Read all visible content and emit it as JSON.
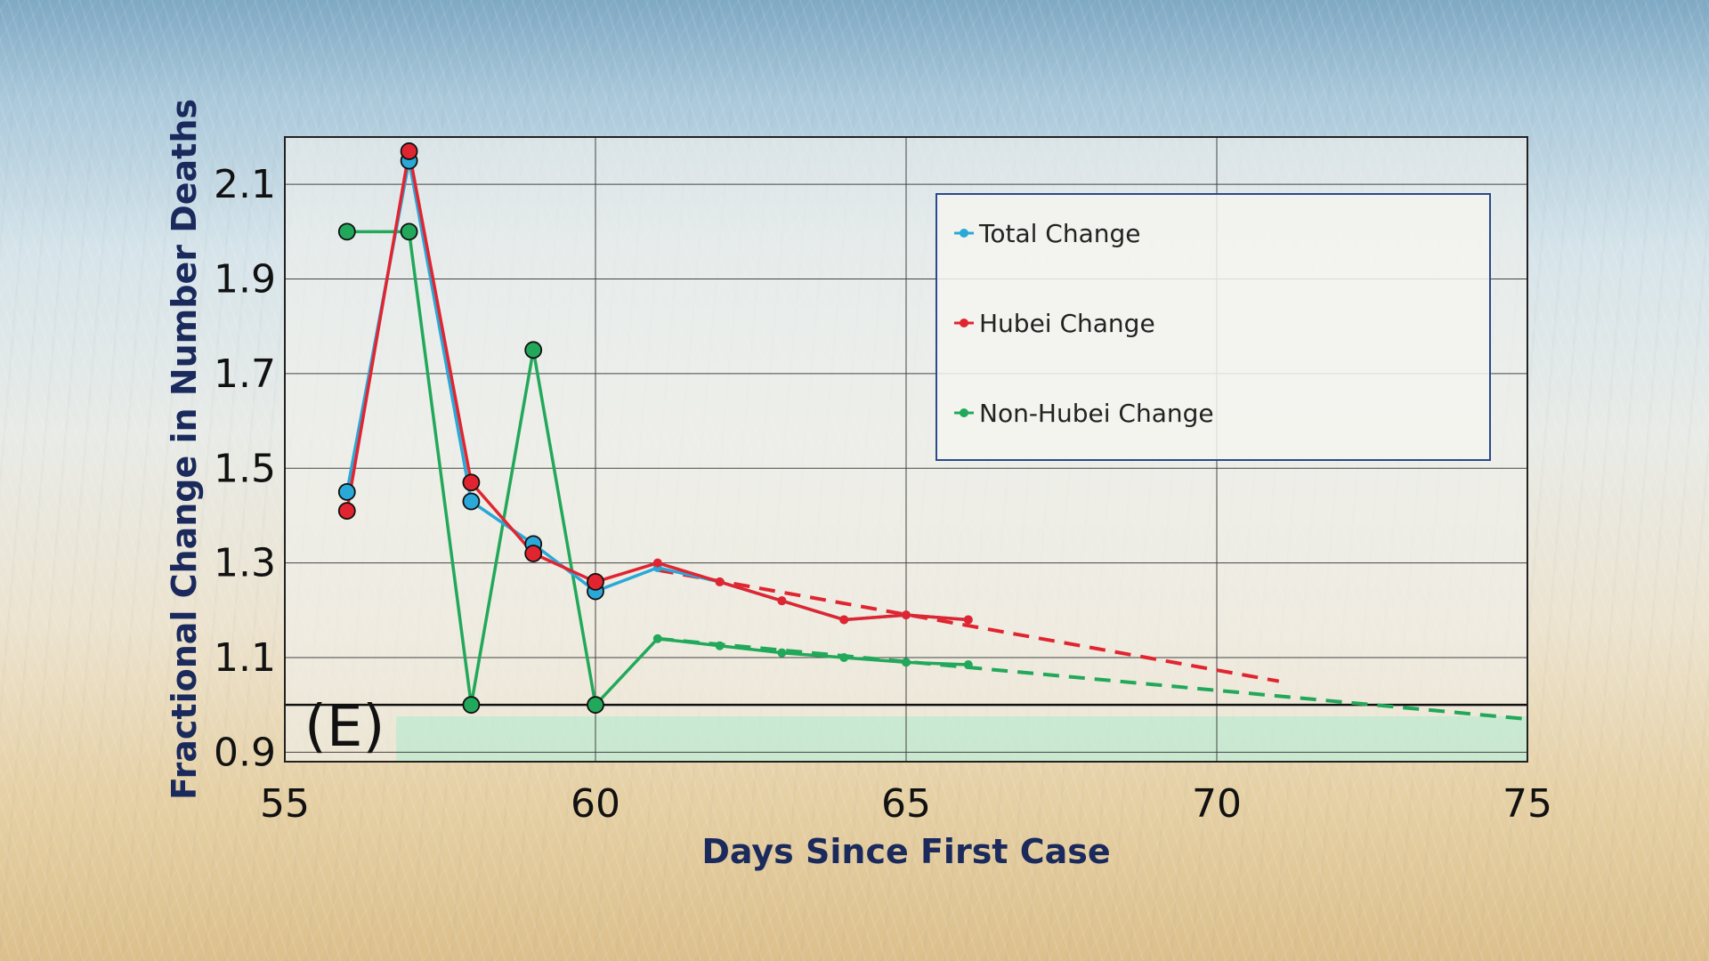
{
  "chart_data": {
    "type": "line",
    "xlabel": "Days Since First Case",
    "ylabel": "Fractional Change in Number Deaths",
    "panel_label": "(E)",
    "xlim": [
      55,
      75
    ],
    "ylim": [
      0.88,
      2.2
    ],
    "xticks": [
      "55",
      "60",
      "65",
      "70",
      "75"
    ],
    "yticks": [
      "0.9",
      "1.1",
      "1.3",
      "1.5",
      "1.7",
      "1.9",
      "2.1"
    ],
    "grid": true,
    "legend_position": "top-right",
    "reference_line_y": 1.0,
    "series": [
      {
        "name": "Total Change",
        "color": "#2aa8d8",
        "x": [
          56,
          57,
          58,
          59,
          60,
          61,
          62,
          63,
          64,
          65,
          66
        ],
        "y": [
          1.45,
          2.15,
          1.43,
          1.34,
          1.24,
          1.29,
          1.26,
          1.22,
          1.18,
          1.19,
          1.18
        ]
      },
      {
        "name": "Hubei Change",
        "color": "#e02530",
        "x": [
          56,
          57,
          58,
          59,
          60,
          61,
          62,
          63,
          64,
          65,
          66
        ],
        "y": [
          1.41,
          2.17,
          1.47,
          1.32,
          1.26,
          1.3,
          1.26,
          1.22,
          1.18,
          1.19,
          1.18
        ]
      },
      {
        "name": "Non-Hubei Change",
        "color": "#22a85a",
        "x": [
          56,
          57,
          58,
          59,
          60,
          61,
          62,
          63,
          64,
          65,
          66
        ],
        "y": [
          2.0,
          2.0,
          1.0,
          1.75,
          1.0,
          1.14,
          1.125,
          1.11,
          1.1,
          1.09,
          1.085
        ]
      }
    ],
    "trend_lines": [
      {
        "color": "#e02530",
        "x": [
          61,
          71
        ],
        "y": [
          1.285,
          1.05
        ]
      },
      {
        "color": "#22a85a",
        "x": [
          61,
          75
        ],
        "y": [
          1.14,
          0.97
        ]
      }
    ]
  }
}
